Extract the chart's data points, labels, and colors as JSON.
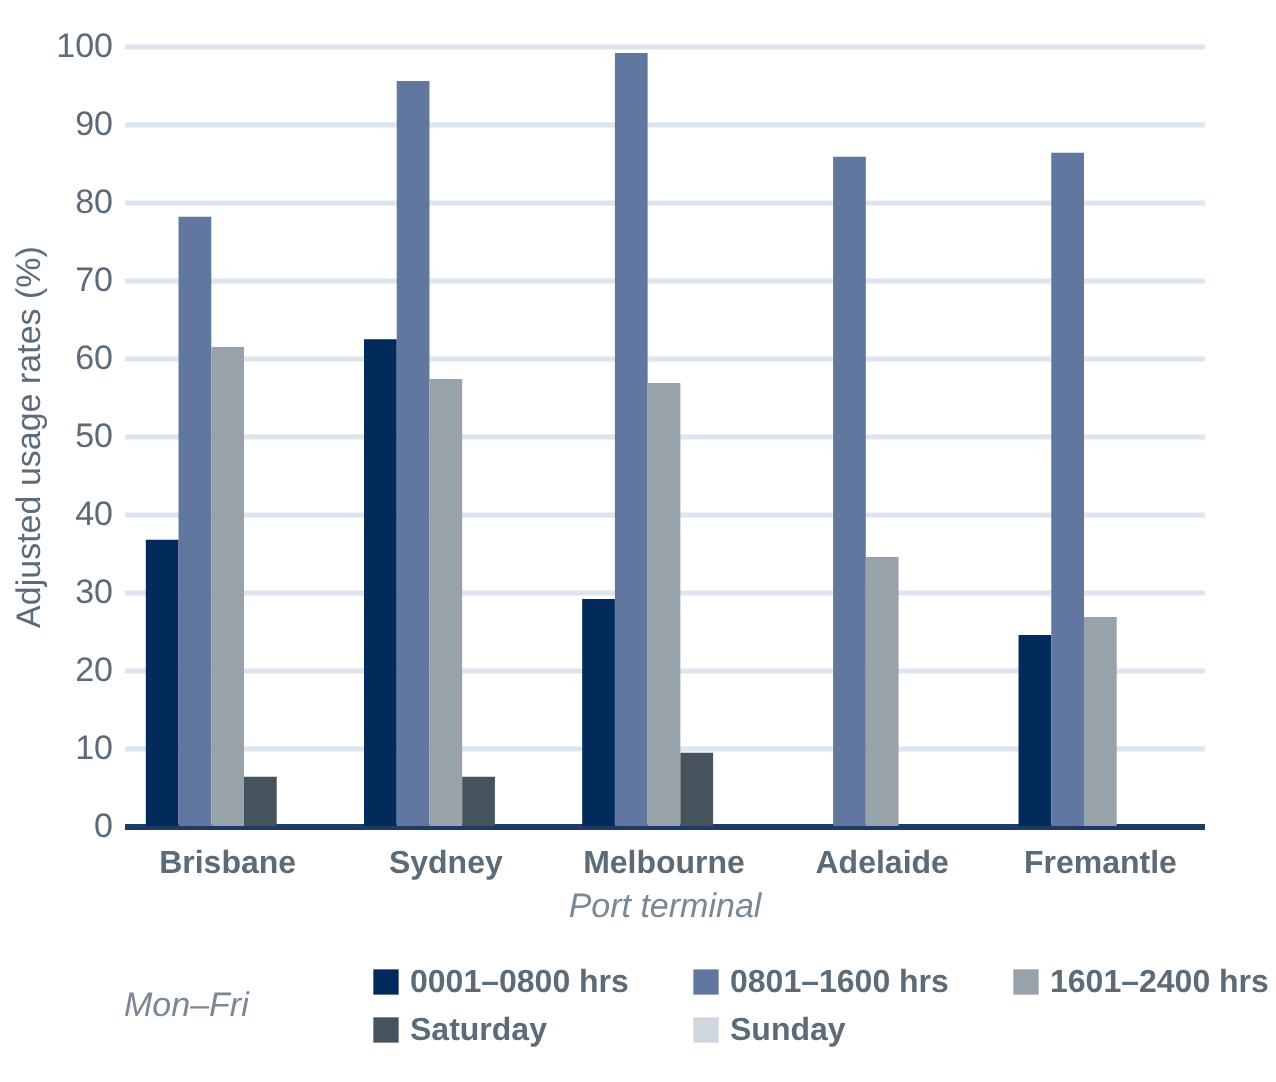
{
  "chart_data": {
    "type": "bar",
    "xlabel": "Port terminal",
    "ylabel": "Adjusted usage rates (%)",
    "legend_title": "Mon–Fri",
    "categories": [
      "Brisbane",
      "Sydney",
      "Melbourne",
      "Adelaide",
      "Fremantle"
    ],
    "series": [
      {
        "name": "0001–0800 hrs",
        "color": "#022b5c",
        "values": [
          36.7,
          62.4,
          29.1,
          0,
          24.5
        ]
      },
      {
        "name": "0801–1600 hrs",
        "color": "#62779f",
        "values": [
          78.1,
          95.5,
          99.1,
          85.8,
          86.3
        ]
      },
      {
        "name": "1601–2400 hrs",
        "color": "#97a2ab",
        "values": [
          61.4,
          57.3,
          56.8,
          34.5,
          26.8
        ]
      },
      {
        "name": "Saturday",
        "color": "#46535c",
        "values": [
          6.3,
          6.3,
          9.4,
          0,
          0
        ]
      },
      {
        "name": "Sunday",
        "color": "#cfd6dd",
        "values": [
          0,
          0,
          0,
          0,
          0
        ]
      }
    ],
    "ylim": [
      0,
      100
    ],
    "yticks": [
      0,
      10,
      20,
      30,
      40,
      50,
      60,
      70,
      80,
      90,
      100
    ],
    "grid": "y",
    "legend": "bottom"
  }
}
